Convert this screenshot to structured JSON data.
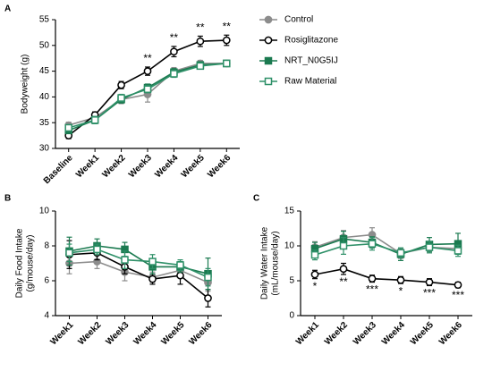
{
  "chart_data": [
    {
      "type": "line",
      "panel": "A",
      "ylabel": [
        "Bodyweight (g)"
      ],
      "categories": [
        "Baseline",
        "Week1",
        "Week2",
        "Week3",
        "Week4",
        "Week5",
        "Week6"
      ],
      "ylim": [
        30,
        55
      ],
      "yticks": [
        30,
        35,
        40,
        45,
        50,
        55
      ],
      "legend": "right",
      "annotations": [
        null,
        null,
        null,
        "**",
        "**",
        "**",
        "**"
      ],
      "annotation_position": "above",
      "annotation_series": 1,
      "series": [
        {
          "name": "Control",
          "color": "#8c8c8c",
          "marker": "circle",
          "filled": true,
          "values": [
            34.5,
            36,
            39.5,
            40.5,
            45,
            46.5,
            46.5
          ],
          "errors": [
            0.6,
            0.8,
            0.8,
            1.5,
            0.7,
            0.6,
            0.6
          ]
        },
        {
          "name": "Rosiglitazone",
          "color": "#000000",
          "marker": "circle",
          "filled": false,
          "values": [
            32.5,
            36.5,
            42.3,
            45,
            48.8,
            50.8,
            51
          ],
          "errors": [
            0.6,
            0.6,
            0.7,
            0.8,
            1,
            1,
            1
          ]
        },
        {
          "name": "NRT_N0G5IJ",
          "color": "#1b7a50",
          "marker": "square",
          "filled": true,
          "values": [
            33.5,
            35.5,
            39.5,
            41.8,
            44.8,
            46.2,
            46.5
          ],
          "errors": [
            0.6,
            0.7,
            0.7,
            0.7,
            0.7,
            0.6,
            0.6
          ]
        },
        {
          "name": "Raw Material",
          "color": "#2e9068",
          "marker": "square",
          "filled": false,
          "values": [
            34,
            35.5,
            39.8,
            41.5,
            44.5,
            46,
            46.5
          ],
          "errors": [
            0.6,
            0.7,
            0.7,
            0.7,
            0.7,
            0.6,
            0.6
          ]
        }
      ]
    },
    {
      "type": "line",
      "panel": "B",
      "ylabel": [
        "Daily Food Intake",
        "(g/mouse/day)"
      ],
      "categories": [
        "Week1",
        "Week2",
        "Week3",
        "Week4",
        "Week5",
        "Week6"
      ],
      "ylim": [
        4,
        10
      ],
      "yticks": [
        4,
        6,
        8,
        10
      ],
      "series": [
        {
          "name": "Control",
          "color": "#8c8c8c",
          "marker": "circle",
          "filled": true,
          "values": [
            7.0,
            7.1,
            6.5,
            6.2,
            6.6,
            5.9
          ],
          "errors": [
            0.6,
            0.4,
            0.5,
            0.3,
            0.4,
            0.5
          ]
        },
        {
          "name": "Rosiglitazone",
          "color": "#000000",
          "marker": "circle",
          "filled": false,
          "values": [
            7.5,
            7.6,
            6.8,
            6.1,
            6.3,
            5.0
          ],
          "errors": [
            0.8,
            0.4,
            0.4,
            0.3,
            0.5,
            0.5
          ]
        },
        {
          "name": "NRT_N0G5IJ",
          "color": "#1b7a50",
          "marker": "square",
          "filled": true,
          "values": [
            7.7,
            8.0,
            7.8,
            6.8,
            6.8,
            6.4
          ],
          "errors": [
            0.8,
            0.4,
            0.4,
            0.4,
            0.3,
            0.9
          ]
        },
        {
          "name": "Raw Material",
          "color": "#2e9068",
          "marker": "square",
          "filled": false,
          "values": [
            7.6,
            7.8,
            7.2,
            7.1,
            6.9,
            6.2
          ],
          "errors": [
            0.5,
            0.3,
            0.5,
            0.4,
            0.3,
            0.5
          ]
        }
      ]
    },
    {
      "type": "line",
      "panel": "C",
      "ylabel": [
        "Daily Water Intake",
        "(mL/mouse/day)"
      ],
      "categories": [
        "Week1",
        "Week2",
        "Week3",
        "Week4",
        "Week5",
        "Week6"
      ],
      "ylim": [
        0,
        15
      ],
      "yticks": [
        0,
        5,
        10,
        15
      ],
      "annotations": [
        "*",
        "**",
        "***",
        "*",
        "***",
        "***"
      ],
      "annotation_position": "below",
      "annotation_series": 1,
      "series": [
        {
          "name": "Control",
          "color": "#8c8c8c",
          "marker": "circle",
          "filled": true,
          "values": [
            9.8,
            11.2,
            11.6,
            8.9,
            9.8,
            9.6
          ],
          "errors": [
            0.8,
            1,
            1,
            0.7,
            0.8,
            0.8
          ]
        },
        {
          "name": "Rosiglitazone",
          "color": "#000000",
          "marker": "circle",
          "filled": false,
          "values": [
            5.9,
            6.7,
            5.3,
            5.1,
            4.8,
            4.4
          ],
          "errors": [
            0.6,
            0.8,
            0.5,
            0.5,
            0.5,
            0.4
          ]
        },
        {
          "name": "NRT_N0G5IJ",
          "color": "#1b7a50",
          "marker": "square",
          "filled": true,
          "values": [
            9.6,
            11.0,
            10.5,
            8.8,
            10.2,
            10.3
          ],
          "errors": [
            0.9,
            1.1,
            0.8,
            0.9,
            1,
            1.5
          ]
        },
        {
          "name": "Raw Material",
          "color": "#2e9068",
          "marker": "square",
          "filled": false,
          "values": [
            8.7,
            10.0,
            10.3,
            9.0,
            9.8,
            9.3
          ],
          "errors": [
            0.7,
            1.2,
            0.9,
            0.7,
            0.8,
            0.8
          ]
        }
      ]
    }
  ]
}
